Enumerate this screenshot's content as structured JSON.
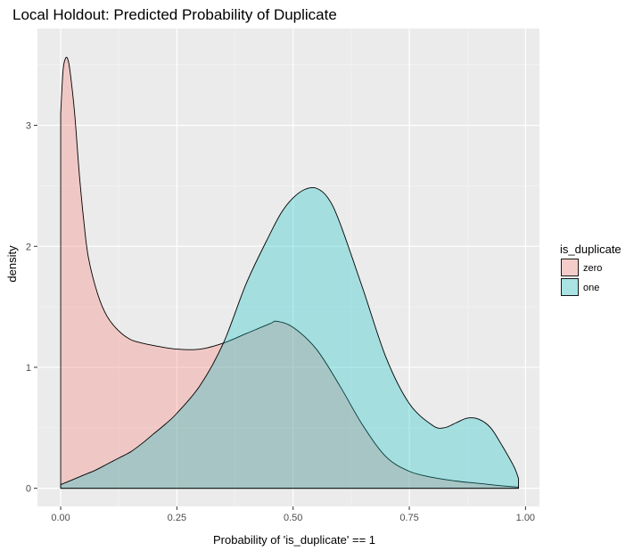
{
  "chart_data": {
    "type": "area",
    "title": "Local Holdout: Predicted Probability of Duplicate",
    "xlabel": "Probability of 'is_duplicate' == 1",
    "ylabel": "density",
    "xlim": [
      -0.05,
      1.03
    ],
    "ylim": [
      -0.15,
      3.8
    ],
    "x_ticks": [
      0,
      0.25,
      0.5,
      0.75,
      1
    ],
    "x_tick_labels": [
      "0.00",
      "0.25",
      "0.50",
      "0.75",
      "1.00"
    ],
    "y_ticks": [
      0,
      1,
      2,
      3
    ],
    "y_tick_labels": [
      "0",
      "1",
      "2",
      "3"
    ],
    "grid": true,
    "legend": {
      "title": "is_duplicate",
      "position": "right"
    },
    "series": [
      {
        "name": "zero",
        "fill": "#F8766D",
        "x": [
          0.0,
          0.005,
          0.01,
          0.015,
          0.02,
          0.03,
          0.04,
          0.05,
          0.06,
          0.08,
          0.1,
          0.125,
          0.15,
          0.175,
          0.2,
          0.25,
          0.3,
          0.35,
          0.4,
          0.45,
          0.465,
          0.5,
          0.55,
          0.6,
          0.65,
          0.7,
          0.75,
          0.8,
          0.85,
          0.9,
          0.95,
          0.985
        ],
        "values": [
          3.1,
          3.45,
          3.55,
          3.55,
          3.45,
          3.1,
          2.6,
          2.2,
          1.9,
          1.6,
          1.42,
          1.3,
          1.23,
          1.2,
          1.18,
          1.15,
          1.15,
          1.2,
          1.28,
          1.36,
          1.38,
          1.33,
          1.15,
          0.85,
          0.52,
          0.26,
          0.14,
          0.09,
          0.06,
          0.04,
          0.02,
          0.01
        ]
      },
      {
        "name": "one",
        "fill": "#00BFC4",
        "x": [
          0.0,
          0.025,
          0.05,
          0.075,
          0.1,
          0.125,
          0.15,
          0.175,
          0.2,
          0.225,
          0.25,
          0.3,
          0.35,
          0.4,
          0.45,
          0.475,
          0.5,
          0.525,
          0.55,
          0.575,
          0.6,
          0.65,
          0.7,
          0.75,
          0.8,
          0.825,
          0.85,
          0.875,
          0.9,
          0.925,
          0.95,
          0.975,
          0.985
        ],
        "values": [
          0.03,
          0.07,
          0.11,
          0.15,
          0.2,
          0.25,
          0.3,
          0.37,
          0.45,
          0.53,
          0.62,
          0.85,
          1.2,
          1.7,
          2.1,
          2.28,
          2.4,
          2.47,
          2.48,
          2.4,
          2.2,
          1.65,
          1.08,
          0.7,
          0.52,
          0.5,
          0.54,
          0.58,
          0.57,
          0.5,
          0.35,
          0.18,
          0.08
        ]
      }
    ]
  }
}
